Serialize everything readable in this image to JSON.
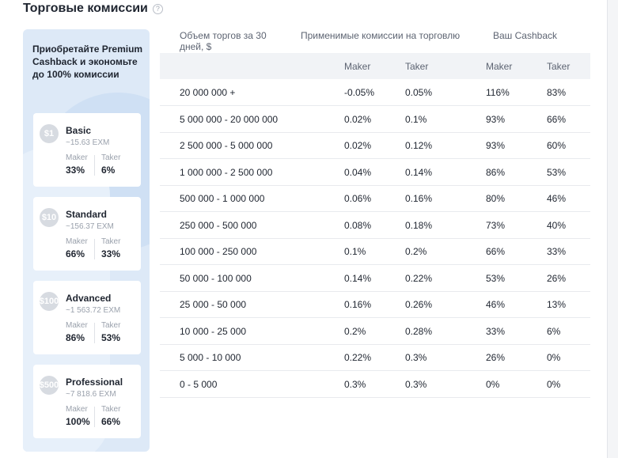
{
  "header": {
    "title": "Торговые комиссии",
    "help_icon": "question-circle-icon"
  },
  "promo": {
    "text": "Приобретайте Premium Cashback и экономьте до 100% комиссии",
    "plans": [
      {
        "badge": "$1",
        "name": "Basic",
        "price": "~15.63 EXM",
        "maker_label": "Maker",
        "taker_label": "Taker",
        "maker": "33%",
        "taker": "6%"
      },
      {
        "badge": "$10",
        "name": "Standard",
        "price": "~156.37 EXM",
        "maker_label": "Maker",
        "taker_label": "Taker",
        "maker": "66%",
        "taker": "33%"
      },
      {
        "badge": "$100",
        "name": "Advanced",
        "price": "~1 563.72 EXM",
        "maker_label": "Maker",
        "taker_label": "Taker",
        "maker": "86%",
        "taker": "53%"
      },
      {
        "badge": "$500",
        "name": "Professional",
        "price": "~7 818.6 EXM",
        "maker_label": "Maker",
        "taker_label": "Taker",
        "maker": "100%",
        "taker": "66%"
      }
    ]
  },
  "table": {
    "col_volume": "Объем торгов за 30 дней, $",
    "col_fees": "Применимые комиссии на торговлю",
    "col_cashback": "Ваш Cashback",
    "sub_maker": "Maker",
    "sub_taker": "Taker",
    "rows": [
      [
        "20 000 000 +",
        "-0.05%",
        "0.05%",
        "116%",
        "83%"
      ],
      [
        "5 000 000 - 20 000 000",
        "0.02%",
        "0.1%",
        "93%",
        "66%"
      ],
      [
        "2 500 000 - 5 000 000",
        "0.02%",
        "0.12%",
        "93%",
        "60%"
      ],
      [
        "1 000 000 - 2 500 000",
        "0.04%",
        "0.14%",
        "86%",
        "53%"
      ],
      [
        "500 000 - 1 000 000",
        "0.06%",
        "0.16%",
        "80%",
        "46%"
      ],
      [
        "250 000 - 500 000",
        "0.08%",
        "0.18%",
        "73%",
        "40%"
      ],
      [
        "100 000 - 250 000",
        "0.1%",
        "0.2%",
        "66%",
        "33%"
      ],
      [
        "50 000 - 100 000",
        "0.14%",
        "0.22%",
        "53%",
        "26%"
      ],
      [
        "25 000 - 50 000",
        "0.16%",
        "0.26%",
        "46%",
        "13%"
      ],
      [
        "10 000 - 25 000",
        "0.2%",
        "0.28%",
        "33%",
        "6%"
      ],
      [
        "5 000 - 10 000",
        "0.22%",
        "0.3%",
        "26%",
        "0%"
      ],
      [
        "0 - 5 000",
        "0.3%",
        "0.3%",
        "0%",
        "0%"
      ]
    ]
  }
}
